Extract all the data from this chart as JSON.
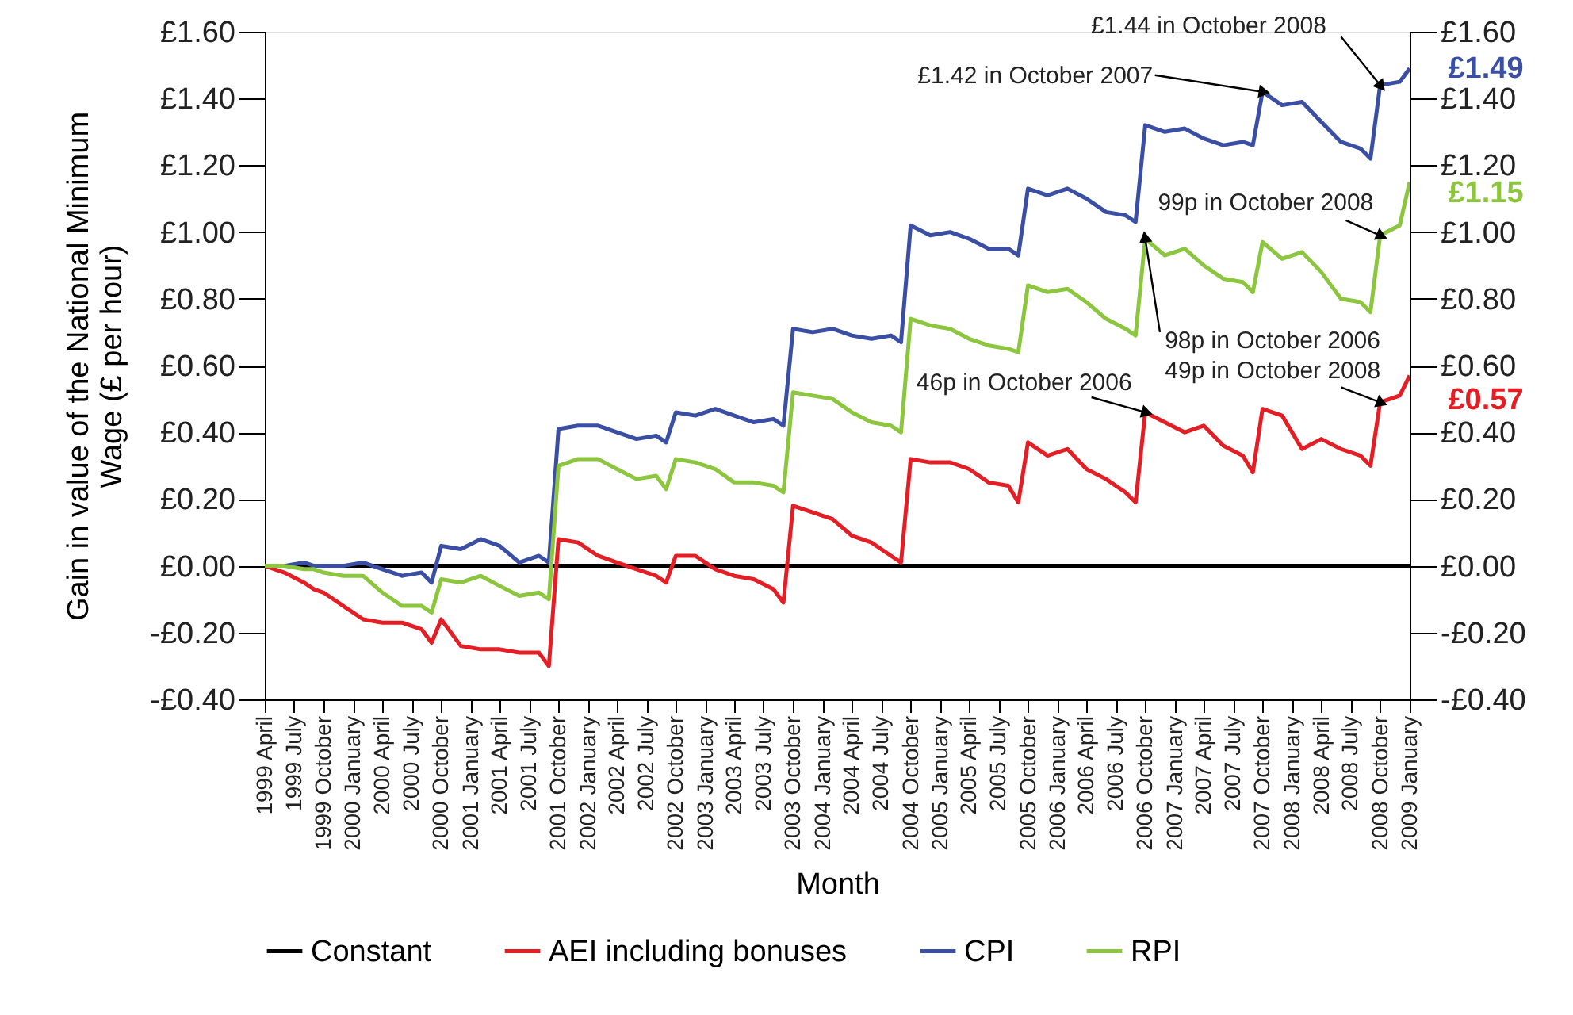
{
  "chart_data": {
    "type": "line",
    "xlabel": "Month",
    "ylabel": "Gain in value of the National Minimum Wage (£ per hour)",
    "x": [
      "1999-04",
      "1999-06",
      "1999-08",
      "1999-09",
      "1999-10",
      "1999-12",
      "2000-02",
      "2000-04",
      "2000-06",
      "2000-08",
      "2000-09",
      "2000-10",
      "2000-12",
      "2001-02",
      "2001-04",
      "2001-06",
      "2001-08",
      "2001-09",
      "2001-10",
      "2001-12",
      "2002-02",
      "2002-04",
      "2002-06",
      "2002-08",
      "2002-09",
      "2002-10",
      "2002-12",
      "2003-02",
      "2003-04",
      "2003-06",
      "2003-08",
      "2003-09",
      "2003-10",
      "2003-12",
      "2004-02",
      "2004-04",
      "2004-06",
      "2004-08",
      "2004-09",
      "2004-10",
      "2004-12",
      "2005-02",
      "2005-04",
      "2005-06",
      "2005-08",
      "2005-09",
      "2005-10",
      "2005-12",
      "2006-02",
      "2006-04",
      "2006-06",
      "2006-08",
      "2006-09",
      "2006-10",
      "2006-12",
      "2007-02",
      "2007-04",
      "2007-06",
      "2007-08",
      "2007-09",
      "2007-10",
      "2007-12",
      "2008-02",
      "2008-04",
      "2008-06",
      "2008-08",
      "2008-09",
      "2008-10",
      "2008-12",
      "2009-01"
    ],
    "series": [
      {
        "name": "Constant",
        "color": "#000000",
        "x": [
          "1999-04",
          "2009-01"
        ],
        "values": [
          0,
          0
        ]
      },
      {
        "name": "AEI including bonuses",
        "color": "#e31e24",
        "values": [
          0,
          -0.02,
          -0.05,
          -0.07,
          -0.08,
          -0.12,
          -0.16,
          -0.17,
          -0.17,
          -0.19,
          -0.23,
          -0.16,
          -0.24,
          -0.25,
          -0.25,
          -0.26,
          -0.26,
          -0.3,
          0.08,
          0.07,
          0.03,
          0.01,
          -0.01,
          -0.03,
          -0.05,
          0.03,
          0.03,
          -0.01,
          -0.03,
          -0.04,
          -0.07,
          -0.11,
          0.18,
          0.16,
          0.14,
          0.09,
          0.07,
          0.03,
          0.01,
          0.32,
          0.31,
          0.31,
          0.29,
          0.25,
          0.24,
          0.19,
          0.37,
          0.33,
          0.35,
          0.29,
          0.26,
          0.22,
          0.19,
          0.46,
          0.43,
          0.4,
          0.42,
          0.36,
          0.33,
          0.28,
          0.47,
          0.45,
          0.35,
          0.38,
          0.35,
          0.33,
          0.3,
          0.49,
          0.51,
          0.57
        ]
      },
      {
        "name": "CPI",
        "color": "#3a4fa3",
        "values": [
          0,
          0,
          0.01,
          0,
          0,
          0,
          0.01,
          -0.01,
          -0.03,
          -0.02,
          -0.05,
          0.06,
          0.05,
          0.08,
          0.06,
          0.01,
          0.03,
          0.01,
          0.41,
          0.42,
          0.42,
          0.4,
          0.38,
          0.39,
          0.37,
          0.46,
          0.45,
          0.47,
          0.45,
          0.43,
          0.44,
          0.42,
          0.71,
          0.7,
          0.71,
          0.69,
          0.68,
          0.69,
          0.67,
          1.02,
          0.99,
          1.0,
          0.98,
          0.95,
          0.95,
          0.93,
          1.13,
          1.11,
          1.13,
          1.1,
          1.06,
          1.05,
          1.03,
          1.32,
          1.3,
          1.31,
          1.28,
          1.26,
          1.27,
          1.26,
          1.42,
          1.38,
          1.39,
          1.33,
          1.27,
          1.25,
          1.22,
          1.44,
          1.45,
          1.49
        ]
      },
      {
        "name": "RPI",
        "color": "#8cc63f",
        "values": [
          0,
          0,
          -0.01,
          -0.01,
          -0.02,
          -0.03,
          -0.03,
          -0.08,
          -0.12,
          -0.12,
          -0.14,
          -0.04,
          -0.05,
          -0.03,
          -0.06,
          -0.09,
          -0.08,
          -0.1,
          0.3,
          0.32,
          0.32,
          0.29,
          0.26,
          0.27,
          0.23,
          0.32,
          0.31,
          0.29,
          0.25,
          0.25,
          0.24,
          0.22,
          0.52,
          0.51,
          0.5,
          0.46,
          0.43,
          0.42,
          0.4,
          0.74,
          0.72,
          0.71,
          0.68,
          0.66,
          0.65,
          0.64,
          0.84,
          0.82,
          0.83,
          0.79,
          0.74,
          0.71,
          0.69,
          0.98,
          0.93,
          0.95,
          0.9,
          0.86,
          0.85,
          0.82,
          0.97,
          0.92,
          0.94,
          0.88,
          0.8,
          0.79,
          0.76,
          0.99,
          1.02,
          1.15
        ]
      }
    ],
    "xlim": [
      "1999-04",
      "2009-01"
    ],
    "xticks": [
      {
        "value": "1999-04",
        "label": "1999 April"
      },
      {
        "value": "1999-07",
        "label": "1999 July"
      },
      {
        "value": "1999-10",
        "label": "1999 October"
      },
      {
        "value": "2000-01",
        "label": "2000 January"
      },
      {
        "value": "2000-04",
        "label": "2000 April"
      },
      {
        "value": "2000-07",
        "label": "2000 July"
      },
      {
        "value": "2000-10",
        "label": "2000 October"
      },
      {
        "value": "2001-01",
        "label": "2001 January"
      },
      {
        "value": "2001-04",
        "label": "2001 April"
      },
      {
        "value": "2001-07",
        "label": "2001 July"
      },
      {
        "value": "2001-10",
        "label": "2001 October"
      },
      {
        "value": "2002-01",
        "label": "2002 January"
      },
      {
        "value": "2002-04",
        "label": "2002 April"
      },
      {
        "value": "2002-07",
        "label": "2002 July"
      },
      {
        "value": "2002-10",
        "label": "2002 October"
      },
      {
        "value": "2003-01",
        "label": "2003 January"
      },
      {
        "value": "2003-04",
        "label": "2003 April"
      },
      {
        "value": "2003-07",
        "label": "2003 July"
      },
      {
        "value": "2003-10",
        "label": "2003 October"
      },
      {
        "value": "2004-01",
        "label": "2004 January"
      },
      {
        "value": "2004-04",
        "label": "2004 April"
      },
      {
        "value": "2004-07",
        "label": "2004 July"
      },
      {
        "value": "2004-10",
        "label": "2004 October"
      },
      {
        "value": "2005-01",
        "label": "2005 January"
      },
      {
        "value": "2005-04",
        "label": "2005 April"
      },
      {
        "value": "2005-07",
        "label": "2005 July"
      },
      {
        "value": "2005-10",
        "label": "2005 October"
      },
      {
        "value": "2006-01",
        "label": "2006 January"
      },
      {
        "value": "2006-04",
        "label": "2006 April"
      },
      {
        "value": "2006-07",
        "label": "2006 July"
      },
      {
        "value": "2006-10",
        "label": "2006 October"
      },
      {
        "value": "2007-01",
        "label": "2007 January"
      },
      {
        "value": "2007-04",
        "label": "2007 April"
      },
      {
        "value": "2007-07",
        "label": "2007 July"
      },
      {
        "value": "2007-10",
        "label": "2007 October"
      },
      {
        "value": "2008-01",
        "label": "2008 January"
      },
      {
        "value": "2008-04",
        "label": "2008 April"
      },
      {
        "value": "2008-07",
        "label": "2008 July"
      },
      {
        "value": "2008-10",
        "label": "2008 October"
      },
      {
        "value": "2009-01",
        "label": "2009 January"
      }
    ],
    "ylim": [
      -0.4,
      1.6
    ],
    "yticks": [
      {
        "value": -0.4,
        "label": "-£0.40"
      },
      {
        "value": -0.2,
        "label": "-£0.20"
      },
      {
        "value": 0,
        "label": "£0.00"
      },
      {
        "value": 0.2,
        "label": "£0.20"
      },
      {
        "value": 0.4,
        "label": "£0.40"
      },
      {
        "value": 0.6,
        "label": "£0.60"
      },
      {
        "value": 0.8,
        "label": "£0.80"
      },
      {
        "value": 1.0,
        "label": "£1.00"
      },
      {
        "value": 1.2,
        "label": "£1.20"
      },
      {
        "value": 1.4,
        "label": "£1.40"
      },
      {
        "value": 1.6,
        "label": "£1.60"
      }
    ],
    "y2lim": [
      -0.4,
      1.6
    ],
    "y2ticks": [
      {
        "value": -0.4,
        "label": "-£0.40"
      },
      {
        "value": -0.2,
        "label": "-£0.20"
      },
      {
        "value": 0,
        "label": "£0.00"
      },
      {
        "value": 0.2,
        "label": "£0.20"
      },
      {
        "value": 0.4,
        "label": "£0.40"
      },
      {
        "value": 0.6,
        "label": "£0.60"
      },
      {
        "value": 0.8,
        "label": "£0.80"
      },
      {
        "value": 1.0,
        "label": "£1.00"
      },
      {
        "value": 1.2,
        "label": "£1.20"
      },
      {
        "value": 1.4,
        "label": "£1.40"
      },
      {
        "value": 1.6,
        "label": "£1.60"
      }
    ],
    "annotations": [
      {
        "text": "£1.44 in October 2008",
        "x": "2008-10",
        "y": 1.44
      },
      {
        "text": "£1.42 in October 2007",
        "x": "2007-10",
        "y": 1.42
      },
      {
        "text": "99p in October 2008",
        "x": "2008-10",
        "y": 0.99
      },
      {
        "text": "98p in October 2006",
        "x": "2006-10",
        "y": 0.98
      },
      {
        "text": "49p in October 2008",
        "x": "2008-10",
        "y": 0.49
      },
      {
        "text": "46p in October 2006",
        "x": "2006-10",
        "y": 0.46
      },
      {
        "text": "£1.49",
        "x": "2009-01",
        "y": 1.49
      },
      {
        "text": "£1.15",
        "x": "2009-01",
        "y": 1.15
      },
      {
        "text": "£0.57",
        "x": "2009-01",
        "y": 0.57
      }
    ],
    "legend": "bottom",
    "grid": false
  }
}
